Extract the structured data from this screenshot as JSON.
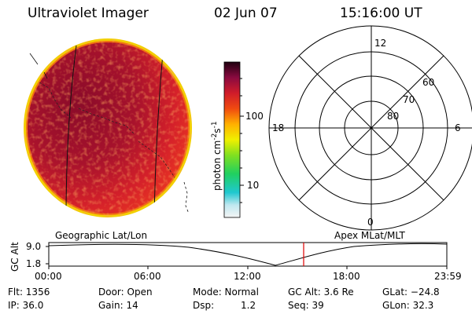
{
  "header": {
    "instrument": "Ultraviolet Imager",
    "date": "02 Jun 07",
    "time": "15:16:00 UT"
  },
  "colorbar": {
    "unit_label": "photon cm",
    "unit_exp1": "-2",
    "unit_s": "s",
    "unit_exp2": "-1",
    "ticks": [
      "100",
      "10"
    ]
  },
  "polar_plot": {
    "mlt_labels": [
      "12",
      "18",
      "6",
      "0"
    ],
    "lat_labels": [
      "60",
      "70",
      "80"
    ]
  },
  "projections": {
    "left": "Geographic Lat/Lon",
    "right": "Apex MLat/MLT"
  },
  "altitude_plot": {
    "ylabel": "GC Alt",
    "yticks": [
      "9.0",
      "1.8"
    ],
    "xticks": [
      "00:00",
      "06:00",
      "12:00",
      "18:00",
      "23:59"
    ],
    "marker_time": "15:16",
    "marker_color": "#e00000"
  },
  "info": {
    "flt": "Flt: 1356",
    "ip": "IP: 36.0",
    "door": "Door: Open",
    "gain": "Gain: 14",
    "mode": "Mode: Normal",
    "dsp_label": "Dsp:",
    "dsp_value": "1.2",
    "gc_alt": "GC Alt: 3.6 Re",
    "seq": "Seq: 39",
    "glat": "GLat: −24.8",
    "glon": "GLon: 32.3"
  }
}
